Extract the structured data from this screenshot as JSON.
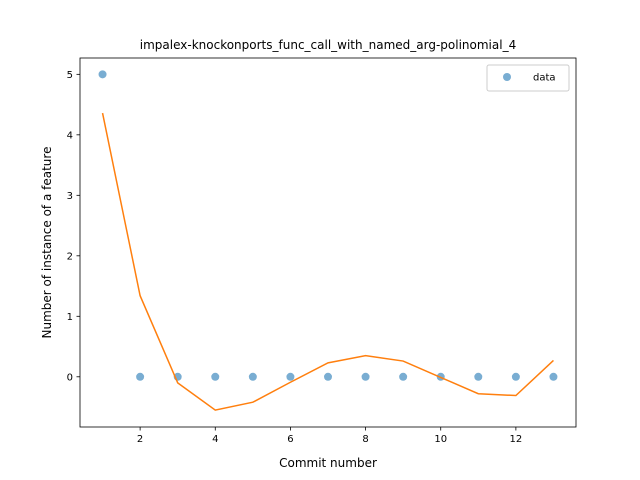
{
  "chart_data": {
    "type": "scatter",
    "title": "impalex-knockonports_func_call_with_named_arg-polinomial_4",
    "xlabel": "Commit number",
    "ylabel": "Number of instance of a feature",
    "xlim": [
      0.4,
      13.6
    ],
    "ylim": [
      -0.83,
      5.27
    ],
    "x_ticks": [
      2,
      4,
      6,
      8,
      10,
      12
    ],
    "y_ticks": [
      0,
      1,
      2,
      3,
      4,
      5
    ],
    "grid": false,
    "legend_position": "top-right",
    "series": [
      {
        "name": "data",
        "kind": "scatter",
        "color": "#1f77b4",
        "x": [
          1,
          2,
          3,
          4,
          5,
          6,
          7,
          8,
          9,
          10,
          11,
          12,
          13
        ],
        "y": [
          5,
          0,
          0,
          0,
          0,
          0,
          0,
          0,
          0,
          0,
          0,
          0,
          0
        ]
      },
      {
        "kind": "line",
        "color": "#ff7f0e",
        "x": [
          1,
          2,
          3,
          4,
          5,
          6,
          7,
          8,
          9,
          10,
          11,
          12,
          13
        ],
        "y": [
          4.36,
          1.34,
          -0.1,
          -0.55,
          -0.42,
          -0.09,
          0.23,
          0.35,
          0.26,
          -0.01,
          -0.28,
          -0.31,
          0.27
        ]
      }
    ]
  }
}
